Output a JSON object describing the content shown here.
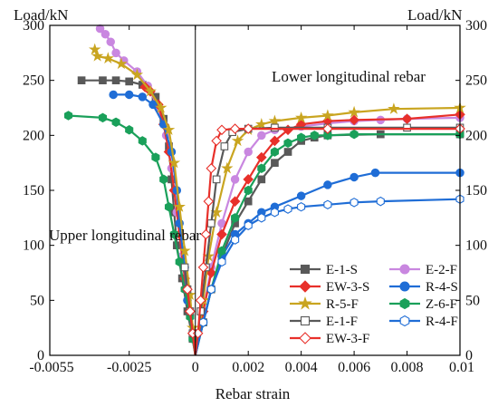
{
  "chart_data": {
    "type": "line",
    "xlabel": "Rebar strain",
    "ylabel_left": "Load/kN",
    "ylabel_right": "Load/kN",
    "xlim": [
      -0.0055,
      0.01
    ],
    "ylim": [
      0,
      300
    ],
    "grid": false,
    "legend_position": "bottom-right",
    "x_ticks": [
      {
        "value": -0.0055,
        "label": "-0.0055"
      },
      {
        "value": -0.0025,
        "label": "-0.0025"
      },
      {
        "value": 0,
        "label": "0"
      },
      {
        "value": 0.002,
        "label": "0.002"
      },
      {
        "value": 0.004,
        "label": "0.004"
      },
      {
        "value": 0.006,
        "label": "0.006"
      },
      {
        "value": 0.008,
        "label": "0.008"
      },
      {
        "value": 0.01,
        "label": "0.01"
      }
    ],
    "y_ticks": [
      {
        "value": 0,
        "label": "0"
      },
      {
        "value": 50,
        "label": "50"
      },
      {
        "value": 100,
        "label": "100"
      },
      {
        "value": 150,
        "label": "150"
      },
      {
        "value": 200,
        "label": "200"
      },
      {
        "value": 250,
        "label": "250"
      },
      {
        "value": 300,
        "label": "300"
      }
    ],
    "annotations": {
      "upper": "Upper longitudinal rebar",
      "lower": "Lower longitudinal rebar"
    },
    "series": [
      {
        "name": "E-1-S",
        "color": "#595959",
        "marker": "square",
        "filled": true,
        "upper": [
          [
            0,
            0
          ],
          [
            -0.0001,
            15
          ],
          [
            -0.0003,
            40
          ],
          [
            -0.0005,
            70
          ],
          [
            -0.0007,
            100
          ],
          [
            -0.0008,
            130
          ],
          [
            -0.0009,
            160
          ],
          [
            -0.001,
            190
          ],
          [
            -0.0012,
            215
          ],
          [
            -0.0015,
            235
          ],
          [
            -0.002,
            246
          ],
          [
            -0.0025,
            249
          ],
          [
            -0.003,
            250
          ],
          [
            -0.0035,
            250
          ],
          [
            -0.0043,
            250
          ]
        ],
        "lower": [
          [
            0,
            0
          ],
          [
            0.0003,
            30
          ],
          [
            0.0006,
            60
          ],
          [
            0.001,
            90
          ],
          [
            0.0015,
            120
          ],
          [
            0.002,
            140
          ],
          [
            0.0025,
            160
          ],
          [
            0.003,
            175
          ],
          [
            0.0035,
            185
          ],
          [
            0.004,
            195
          ],
          [
            0.0045,
            198
          ],
          [
            0.005,
            200
          ],
          [
            0.007,
            201
          ],
          [
            0.01,
            201
          ]
        ]
      },
      {
        "name": "E-2-F",
        "color": "#c987e0",
        "marker": "circle",
        "filled": true,
        "upper": [
          [
            0,
            0
          ],
          [
            -0.0001,
            20
          ],
          [
            -0.0003,
            50
          ],
          [
            -0.0005,
            90
          ],
          [
            -0.0007,
            130
          ],
          [
            -0.0009,
            170
          ],
          [
            -0.0011,
            200
          ],
          [
            -0.0014,
            225
          ],
          [
            -0.0018,
            245
          ],
          [
            -0.0022,
            258
          ],
          [
            -0.0027,
            268
          ],
          [
            -0.003,
            275
          ],
          [
            -0.0032,
            285
          ],
          [
            -0.0034,
            292
          ],
          [
            -0.0036,
            297
          ]
        ],
        "lower": [
          [
            0,
            0
          ],
          [
            0.0003,
            40
          ],
          [
            0.0006,
            80
          ],
          [
            0.001,
            120
          ],
          [
            0.0015,
            160
          ],
          [
            0.002,
            185
          ],
          [
            0.0025,
            200
          ],
          [
            0.003,
            205
          ],
          [
            0.004,
            208
          ],
          [
            0.005,
            211
          ],
          [
            0.006,
            213
          ],
          [
            0.007,
            214
          ],
          [
            0.008,
            215
          ],
          [
            0.01,
            216
          ]
        ]
      },
      {
        "name": "EW-3-S",
        "color": "#e8302a",
        "marker": "diamond",
        "filled": true,
        "upper": [
          [
            0,
            0
          ],
          [
            -0.0001,
            20
          ],
          [
            -0.0002,
            40
          ],
          [
            -0.0004,
            70
          ],
          [
            -0.0006,
            110
          ],
          [
            -0.0008,
            150
          ],
          [
            -0.001,
            185
          ],
          [
            -0.0012,
            210
          ],
          [
            -0.0014,
            228
          ],
          [
            -0.0017,
            240
          ],
          [
            -0.0019,
            244
          ]
        ],
        "lower": [
          [
            0,
            0
          ],
          [
            0.0003,
            40
          ],
          [
            0.0006,
            75
          ],
          [
            0.001,
            110
          ],
          [
            0.0015,
            140
          ],
          [
            0.002,
            160
          ],
          [
            0.0025,
            180
          ],
          [
            0.003,
            195
          ],
          [
            0.0035,
            205
          ],
          [
            0.004,
            210
          ],
          [
            0.005,
            213
          ],
          [
            0.006,
            214
          ],
          [
            0.008,
            215
          ],
          [
            0.01,
            219
          ]
        ]
      },
      {
        "name": "R-4-S",
        "color": "#1f6dd6",
        "marker": "circle",
        "filled": true,
        "upper": [
          [
            0,
            0
          ],
          [
            -0.0001,
            20
          ],
          [
            -0.0003,
            50
          ],
          [
            -0.0004,
            80
          ],
          [
            -0.0006,
            120
          ],
          [
            -0.0007,
            150
          ],
          [
            -0.0009,
            185
          ],
          [
            -0.0012,
            210
          ],
          [
            -0.0016,
            228
          ],
          [
            -0.002,
            235
          ],
          [
            -0.0025,
            237
          ],
          [
            -0.0031,
            237
          ]
        ],
        "lower": [
          [
            0,
            0
          ],
          [
            0.0003,
            30
          ],
          [
            0.0006,
            60
          ],
          [
            0.001,
            90
          ],
          [
            0.0015,
            110
          ],
          [
            0.002,
            120
          ],
          [
            0.0025,
            130
          ],
          [
            0.003,
            135
          ],
          [
            0.004,
            145
          ],
          [
            0.005,
            155
          ],
          [
            0.006,
            162
          ],
          [
            0.0068,
            166
          ],
          [
            0.01,
            166
          ]
        ]
      },
      {
        "name": "R-5-F",
        "color": "#c9a520",
        "marker": "star",
        "filled": true,
        "upper": [
          [
            0,
            0
          ],
          [
            -0.0001,
            25
          ],
          [
            -0.0002,
            55
          ],
          [
            -0.0004,
            95
          ],
          [
            -0.0006,
            135
          ],
          [
            -0.0008,
            175
          ],
          [
            -0.001,
            205
          ],
          [
            -0.0013,
            225
          ],
          [
            -0.0017,
            240
          ],
          [
            -0.0022,
            255
          ],
          [
            -0.0028,
            265
          ],
          [
            -0.0033,
            270
          ],
          [
            -0.0037,
            272
          ],
          [
            -0.0038,
            278
          ]
        ],
        "lower": [
          [
            0,
            0
          ],
          [
            0.0003,
            50
          ],
          [
            0.0005,
            90
          ],
          [
            0.0008,
            130
          ],
          [
            0.0012,
            170
          ],
          [
            0.0016,
            195
          ],
          [
            0.002,
            205
          ],
          [
            0.0025,
            210
          ],
          [
            0.003,
            213
          ],
          [
            0.004,
            216
          ],
          [
            0.005,
            218
          ],
          [
            0.006,
            221
          ],
          [
            0.0075,
            224
          ],
          [
            0.01,
            225
          ]
        ]
      },
      {
        "name": "Z-6-F",
        "color": "#1aa05a",
        "marker": "hexagon",
        "filled": true,
        "upper": [
          [
            0,
            0
          ],
          [
            -0.0001,
            15
          ],
          [
            -0.0002,
            35
          ],
          [
            -0.0004,
            60
          ],
          [
            -0.0006,
            85
          ],
          [
            -0.0008,
            110
          ],
          [
            -0.001,
            135
          ],
          [
            -0.0012,
            160
          ],
          [
            -0.0015,
            180
          ],
          [
            -0.002,
            195
          ],
          [
            -0.0025,
            205
          ],
          [
            -0.003,
            212
          ],
          [
            -0.0035,
            216
          ],
          [
            -0.0048,
            218
          ]
        ],
        "lower": [
          [
            0,
            0
          ],
          [
            0.0003,
            30
          ],
          [
            0.0006,
            60
          ],
          [
            0.001,
            95
          ],
          [
            0.0015,
            125
          ],
          [
            0.002,
            150
          ],
          [
            0.0025,
            170
          ],
          [
            0.003,
            185
          ],
          [
            0.0035,
            193
          ],
          [
            0.004,
            198
          ],
          [
            0.0045,
            200
          ],
          [
            0.005,
            200
          ],
          [
            0.006,
            201
          ],
          [
            0.01,
            201
          ]
        ]
      },
      {
        "name": "E-1-F",
        "color": "#595959",
        "marker": "square",
        "filled": false,
        "upper": [
          [
            0,
            0
          ],
          [
            -0.0001,
            20
          ],
          [
            -0.0002,
            40
          ],
          [
            -0.0003,
            60
          ],
          [
            -0.0004,
            80
          ]
        ],
        "lower": [
          [
            0,
            0
          ],
          [
            0.0002,
            40
          ],
          [
            0.0004,
            80
          ],
          [
            0.0006,
            120
          ],
          [
            0.0008,
            160
          ],
          [
            0.0011,
            190
          ],
          [
            0.0014,
            203
          ],
          [
            0.002,
            206
          ],
          [
            0.003,
            207
          ],
          [
            0.005,
            207
          ],
          [
            0.008,
            207
          ],
          [
            0.01,
            207
          ]
        ]
      },
      {
        "name": "R-4-F",
        "color": "#1f6dd6",
        "marker": "hexagon",
        "filled": false,
        "upper": [],
        "lower": [
          [
            0,
            0
          ],
          [
            0.0003,
            30
          ],
          [
            0.0006,
            60
          ],
          [
            0.001,
            85
          ],
          [
            0.0015,
            105
          ],
          [
            0.002,
            118
          ],
          [
            0.0025,
            125
          ],
          [
            0.003,
            130
          ],
          [
            0.0035,
            133
          ],
          [
            0.004,
            135
          ],
          [
            0.005,
            137
          ],
          [
            0.006,
            139
          ],
          [
            0.007,
            140
          ],
          [
            0.01,
            142
          ]
        ]
      },
      {
        "name": "EW-3-F",
        "color": "#e8302a",
        "marker": "diamond",
        "filled": false,
        "upper": [
          [
            0,
            0
          ],
          [
            -0.0001,
            20
          ],
          [
            -0.0002,
            40
          ],
          [
            -0.0003,
            60
          ]
        ],
        "lower": [
          [
            0,
            0
          ],
          [
            0.0001,
            20
          ],
          [
            0.0002,
            50
          ],
          [
            0.0003,
            80
          ],
          [
            0.0004,
            110
          ],
          [
            0.0005,
            140
          ],
          [
            0.0006,
            170
          ],
          [
            0.0008,
            195
          ],
          [
            0.001,
            205
          ],
          [
            0.0015,
            206
          ],
          [
            0.002,
            206
          ],
          [
            0.005,
            206
          ],
          [
            0.01,
            206
          ]
        ]
      }
    ]
  }
}
